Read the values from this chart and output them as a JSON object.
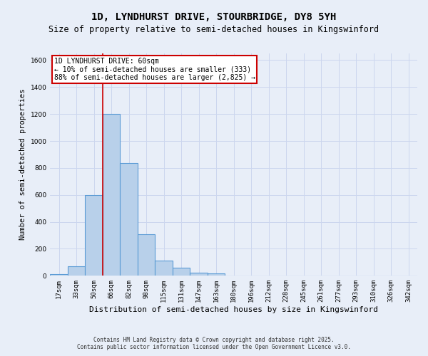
{
  "title": "1D, LYNDHURST DRIVE, STOURBRIDGE, DY8 5YH",
  "subtitle": "Size of property relative to semi-detached houses in Kingswinford",
  "xlabel": "Distribution of semi-detached houses by size in Kingswinford",
  "ylabel": "Number of semi-detached properties",
  "bin_labels": [
    "17sqm",
    "33sqm",
    "50sqm",
    "66sqm",
    "82sqm",
    "98sqm",
    "115sqm",
    "131sqm",
    "147sqm",
    "163sqm",
    "180sqm",
    "196sqm",
    "212sqm",
    "228sqm",
    "245sqm",
    "261sqm",
    "277sqm",
    "293sqm",
    "310sqm",
    "326sqm",
    "342sqm"
  ],
  "bar_values": [
    10,
    70,
    600,
    1200,
    835,
    310,
    115,
    60,
    25,
    15,
    0,
    0,
    0,
    0,
    0,
    0,
    0,
    0,
    0,
    0,
    0
  ],
  "bar_color": "#b8d0ea",
  "bar_edge_color": "#5b9bd5",
  "grid_color": "#ccd6ee",
  "background_color": "#e8eef8",
  "vline_x_index": 2.5,
  "vline_color": "#cc0000",
  "annotation_line1": "1D LYNDHURST DRIVE: 60sqm",
  "annotation_line2": "← 10% of semi-detached houses are smaller (333)",
  "annotation_line3": "88% of semi-detached houses are larger (2,825) →",
  "annotation_box_color": "#ffffff",
  "annotation_border_color": "#cc0000",
  "ylim": [
    0,
    1650
  ],
  "yticks": [
    0,
    200,
    400,
    600,
    800,
    1000,
    1200,
    1400,
    1600
  ],
  "footer_line1": "Contains HM Land Registry data © Crown copyright and database right 2025.",
  "footer_line2": "Contains public sector information licensed under the Open Government Licence v3.0.",
  "title_fontsize": 10,
  "subtitle_fontsize": 8.5,
  "tick_fontsize": 6.5,
  "ylabel_fontsize": 7.5,
  "xlabel_fontsize": 8,
  "annotation_fontsize": 7,
  "footer_fontsize": 5.5
}
